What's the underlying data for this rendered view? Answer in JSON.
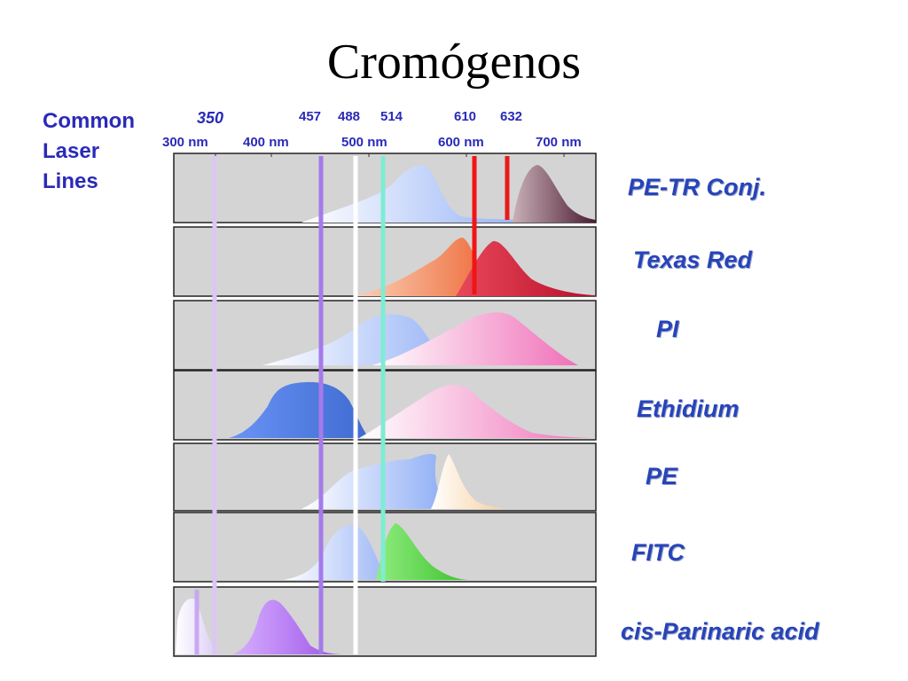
{
  "title": "Cromógenos",
  "laser_heading": [
    "Common",
    "Laser",
    "Lines"
  ],
  "laser_lines": [
    {
      "label": "350",
      "italic": true,
      "color": "#dcc6f5"
    },
    {
      "label": "457",
      "italic": false,
      "color": "#a57bea"
    },
    {
      "label": "488",
      "italic": false,
      "color": "#ffffff"
    },
    {
      "label": "514",
      "italic": false,
      "color": "#7fecd2"
    },
    {
      "label": "610",
      "italic": false,
      "color": "#f01515"
    },
    {
      "label": "632",
      "italic": false,
      "color": "#e81a1a"
    }
  ],
  "wavelength_axis": [
    "300 nm",
    "400 nm",
    "500 nm",
    "600 nm",
    "700 nm"
  ],
  "dyes": [
    "PE-TR Conj.",
    "Texas Red",
    "PI",
    "Ethidium",
    "PE",
    "FITC",
    "cis-Parinaric acid"
  ],
  "colors": {
    "accent_text": "#2a2ab8",
    "dye_text": "#2744b8",
    "panel_bg": "#d4d4d4",
    "absorption_blue": "#8aaaf5",
    "emission_pink": "#f070b8",
    "texas_red_absorption": "#ee7040",
    "texas_red_emission": "#c8102e",
    "fitc_emission": "#4ccc3c",
    "ethidium_absorption": "#4f7ee8",
    "cis_parinaric_purple": "#b066f0",
    "pe_tr_emission": "#5a2a3a"
  }
}
